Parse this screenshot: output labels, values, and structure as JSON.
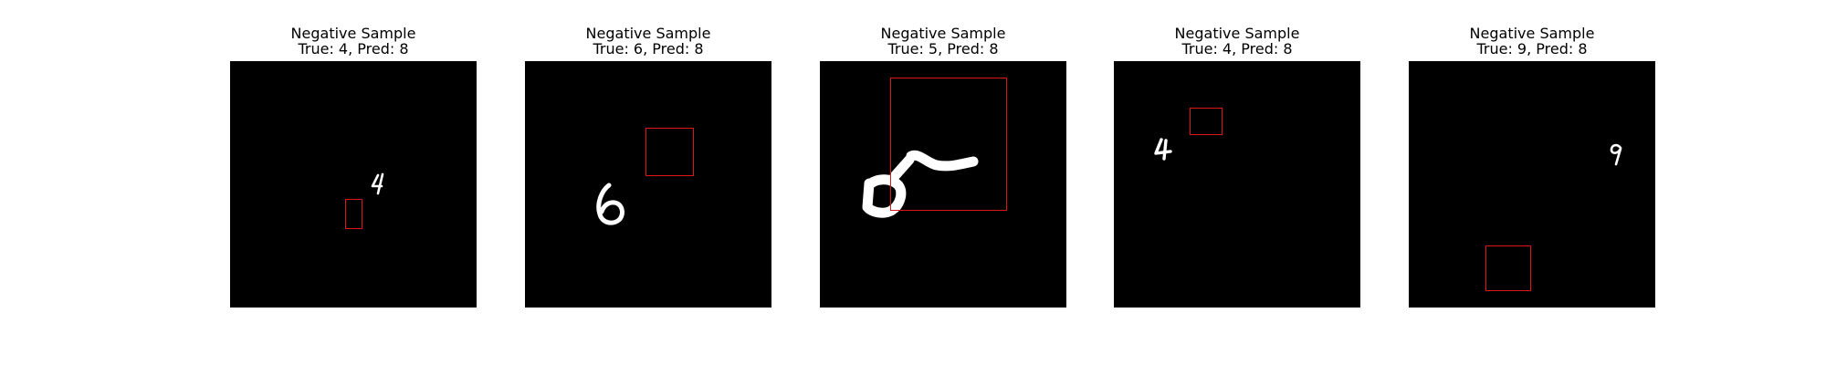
{
  "figure": {
    "panels": [
      {
        "title": "Negative Sample",
        "subtitle": "True: 4, Pred: 8",
        "true_label": 4,
        "pred_label": 8,
        "digit": "4"
      },
      {
        "title": "Negative Sample",
        "subtitle": "True: 6, Pred: 8",
        "true_label": 6,
        "pred_label": 8,
        "digit": "6"
      },
      {
        "title": "Negative Sample",
        "subtitle": "True: 5, Pred: 8",
        "true_label": 5,
        "pred_label": 8,
        "digit": "5"
      },
      {
        "title": "Negative Sample",
        "subtitle": "True: 4, Pred: 8",
        "true_label": 4,
        "pred_label": 8,
        "digit": "4"
      },
      {
        "title": "Negative Sample",
        "subtitle": "True: 9, Pred: 8",
        "true_label": 9,
        "pred_label": 8,
        "digit": "9"
      }
    ]
  },
  "colors": {
    "image_background": "#000000",
    "digit_stroke": "#ffffff",
    "bbox_stroke": "#e01616"
  }
}
